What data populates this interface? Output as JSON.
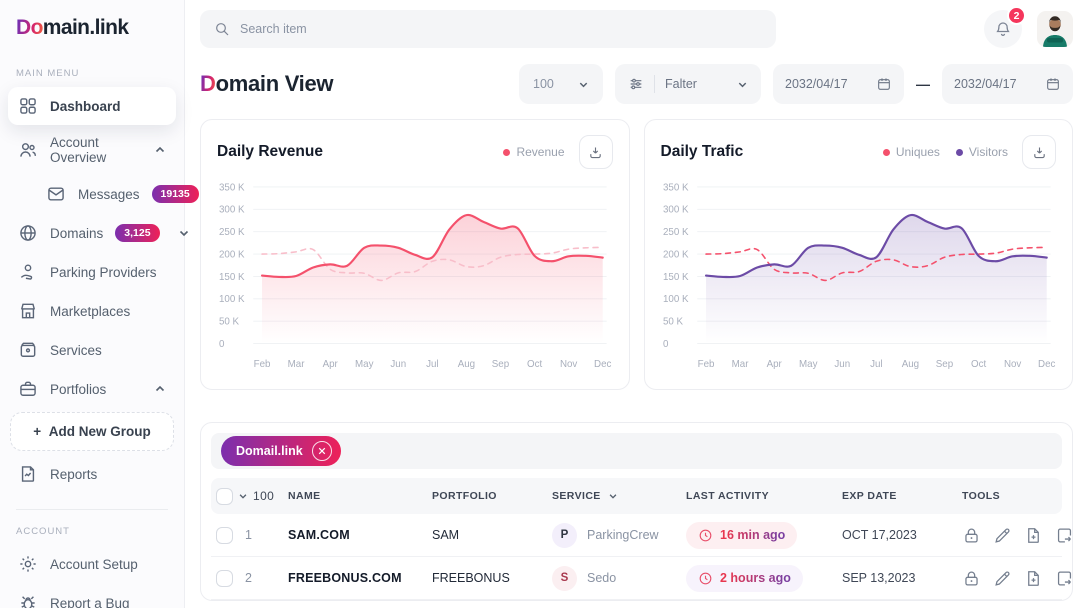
{
  "theme": {
    "accent_red": "#F4516C",
    "accent_purple": "#6C4BA6",
    "badge_gradient_from": "#7B2FAE",
    "badge_gradient_to": "#EE2158",
    "notification_red": "#F5365C"
  },
  "brand": {
    "logo_accent": "Do",
    "logo_rest": "main.link"
  },
  "topbar": {
    "search_placeholder": "Search item",
    "notification_count": "2"
  },
  "sidebar": {
    "main_menu_label": "MAIN MENU",
    "account_label": "ACCOUNT",
    "items": [
      {
        "label": "Dashboard",
        "icon": "dashboard-icon",
        "active": true
      },
      {
        "label": "Account Overview",
        "icon": "users-icon",
        "expanded": true
      },
      {
        "label": "Messages",
        "icon": "envelope-icon",
        "badge": "19135"
      },
      {
        "label": "Domains",
        "icon": "globe-icon",
        "badge": "3,125"
      },
      {
        "label": "Parking Providers",
        "icon": "hand-coin-icon"
      },
      {
        "label": "Marketplaces",
        "icon": "storefront-icon"
      },
      {
        "label": "Services",
        "icon": "box-icon"
      },
      {
        "label": "Portfolios",
        "icon": "briefcase-icon",
        "expanded": true
      },
      {
        "label": "Reports",
        "icon": "report-icon"
      }
    ],
    "add_group": {
      "plus": "+",
      "label": "Add New Group"
    },
    "account_items": [
      {
        "label": "Account Setup",
        "icon": "gear-icon"
      },
      {
        "label": "Report a Bug",
        "icon": "bug-icon"
      }
    ]
  },
  "header": {
    "title_accent": "D",
    "title_rest": "omain View",
    "page_size": "100",
    "filter_label": "Falter",
    "date_from": "2032/04/17",
    "range_dash": "—",
    "date_to": "2032/04/17"
  },
  "chart_data": [
    {
      "type": "area",
      "title": "Daily Revenue",
      "categories": [
        "Feb",
        "Mar",
        "Apr",
        "May",
        "Jun",
        "Jul",
        "Aug",
        "Sep",
        "Oct",
        "Nov",
        "Dec"
      ],
      "x_step_months": 0.5,
      "ylim": [
        0,
        350
      ],
      "yticks": [
        0,
        50,
        100,
        150,
        200,
        250,
        300,
        350
      ],
      "ytick_labels": [
        "0",
        "50 K",
        "100 K",
        "150 K",
        "200 K",
        "250 K",
        "300 K",
        "350 K"
      ],
      "unit": "K",
      "grid": true,
      "legend_position": "top-right",
      "legend": [
        {
          "label": "Revenue",
          "color": "#F4516C"
        }
      ],
      "series": [
        {
          "name": "",
          "style": "dashed",
          "color": "#F8BECA",
          "values": [
            200,
            201,
            205,
            210,
            166,
            158,
            157,
            141,
            158,
            161,
            184,
            187,
            172,
            174,
            193,
            199,
            200,
            202,
            211,
            214,
            215
          ]
        },
        {
          "name": "Revenue",
          "style": "solid",
          "color": "#F4516C",
          "area": true,
          "area_from": "rgba(244,81,108,0.26)",
          "area_to": "rgba(244,81,108,0)",
          "values": [
            152,
            149,
            151,
            170,
            177,
            174,
            214,
            219,
            214,
            198,
            193,
            255,
            287,
            272,
            257,
            258,
            196,
            184,
            195,
            196,
            192
          ]
        }
      ]
    },
    {
      "type": "area",
      "title": "Daily Trafic",
      "categories": [
        "Feb",
        "Mar",
        "Apr",
        "May",
        "Jun",
        "Jul",
        "Aug",
        "Sep",
        "Oct",
        "Nov",
        "Dec"
      ],
      "x_step_months": 0.5,
      "ylim": [
        0,
        350
      ],
      "yticks": [
        0,
        50,
        100,
        150,
        200,
        250,
        300,
        350
      ],
      "ytick_labels": [
        "0",
        "50 K",
        "100 K",
        "150 K",
        "200 K",
        "250 K",
        "300 K",
        "350 K"
      ],
      "unit": "K",
      "grid": true,
      "legend_position": "top-right",
      "legend": [
        {
          "label": "Uniques",
          "color": "#F4516C"
        },
        {
          "label": "Visitors",
          "color": "#6C4BA6"
        }
      ],
      "series": [
        {
          "name": "Uniques",
          "style": "dashed",
          "color": "#F4516C",
          "values": [
            200,
            201,
            205,
            210,
            166,
            158,
            157,
            141,
            158,
            161,
            184,
            187,
            172,
            174,
            193,
            199,
            200,
            202,
            211,
            214,
            215
          ]
        },
        {
          "name": "Visitors",
          "style": "solid",
          "color": "#6C4BA6",
          "area": true,
          "area_from": "rgba(108,75,166,0.22)",
          "area_to": "rgba(108,75,166,0)",
          "values": [
            152,
            149,
            151,
            170,
            177,
            174,
            214,
            219,
            214,
            198,
            193,
            255,
            287,
            272,
            257,
            258,
            196,
            184,
            195,
            196,
            192
          ]
        }
      ]
    }
  ],
  "table": {
    "tag_label": "Domail.link",
    "select_value": "100",
    "columns": [
      "NAME",
      "PORTFOLIO",
      "SERVICE",
      "LAST ACTIVITY",
      "EXP DATE",
      "TOOLS"
    ],
    "rows": [
      {
        "num": "1",
        "name": "SAM.COM",
        "portfolio": "SAM",
        "service_initial": "P",
        "service": "ParkingCrew",
        "activity": "16 min ago",
        "exp_date": "OCT 17,2023"
      },
      {
        "num": "2",
        "name": "FREEBONUS.COM",
        "portfolio": "FREEBONUS",
        "service_initial": "S",
        "service": "Sedo",
        "activity": "2 hours ago",
        "exp_date": "SEP 13,2023"
      }
    ],
    "tools": [
      "lock",
      "edit",
      "file-add",
      "file-export"
    ]
  }
}
